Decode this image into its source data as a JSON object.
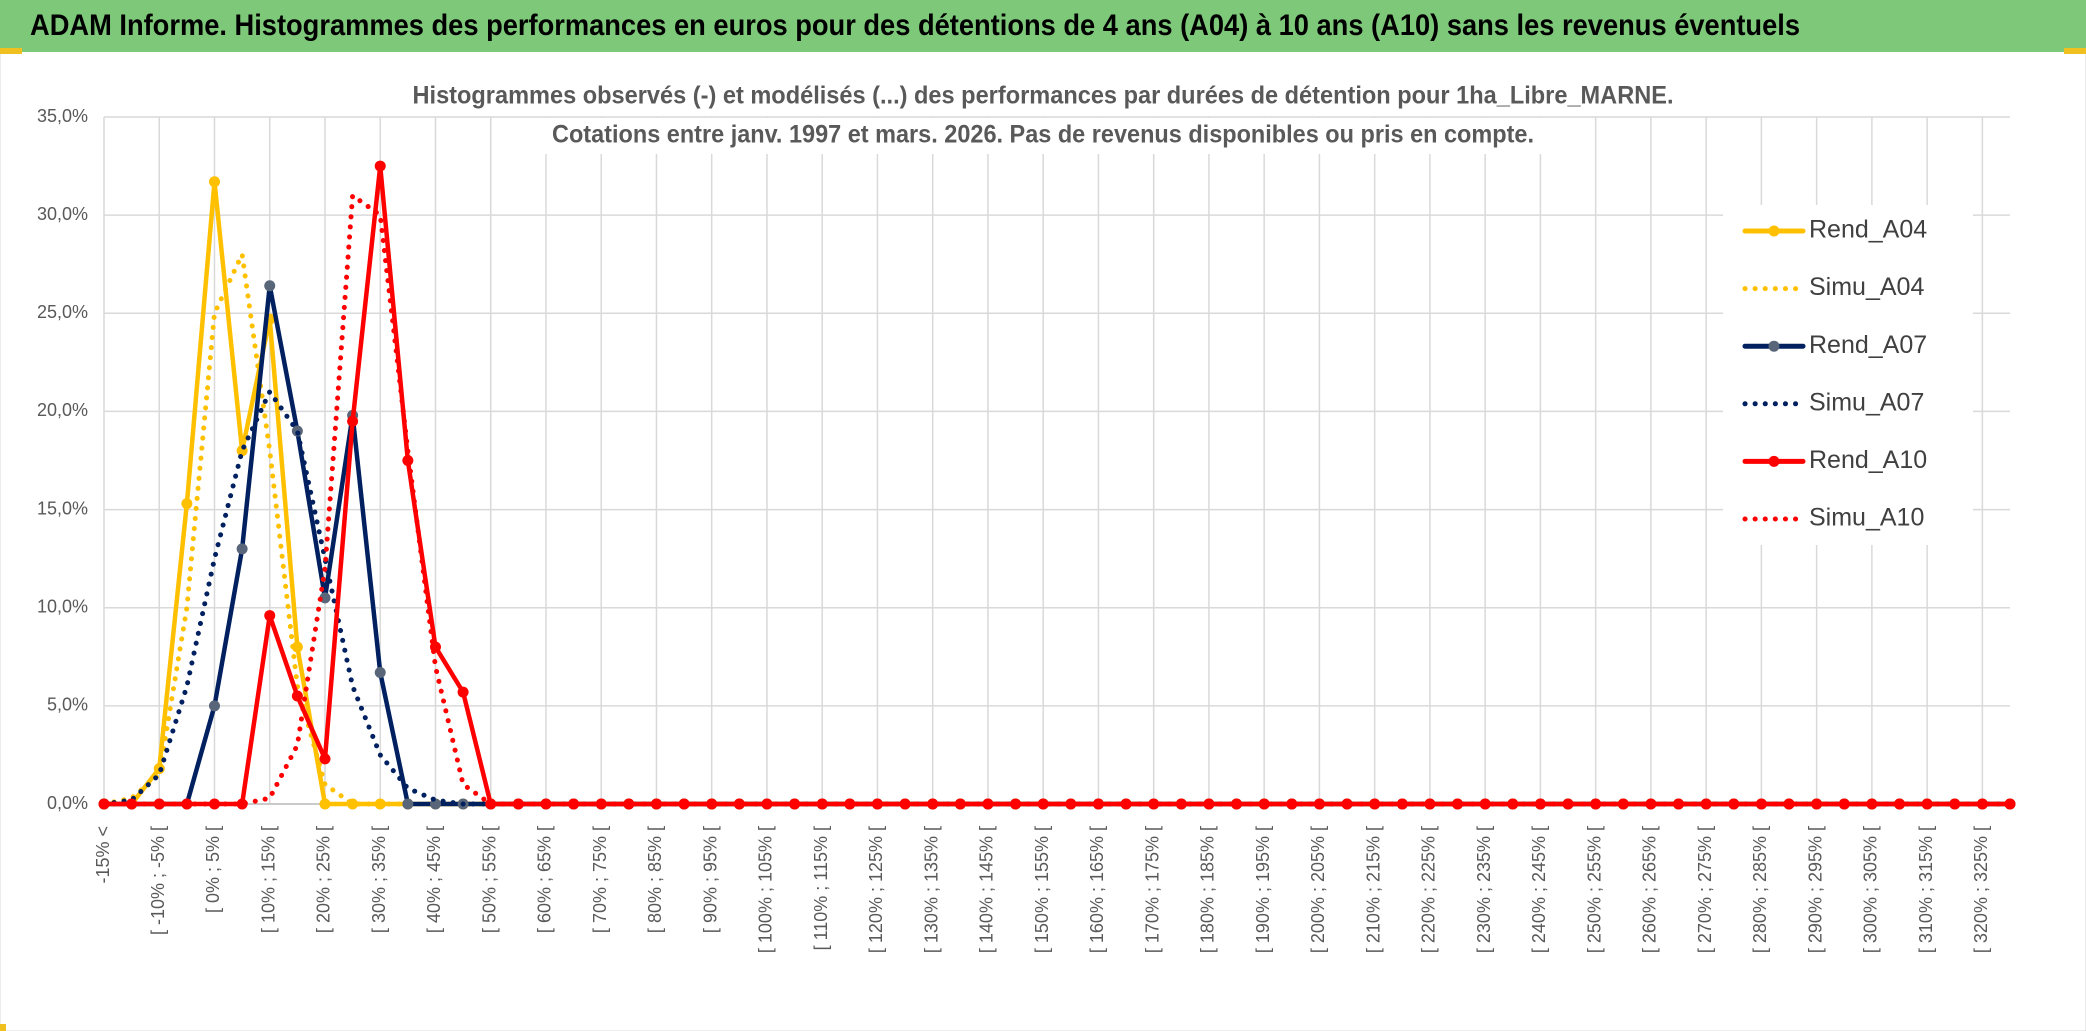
{
  "chart_data": {
    "type": "line",
    "title": "ADAM Informe. Histogrammes des performances en euros pour des détentions de 4 ans (A04) à 10 ans (A10) sans les revenus éventuels",
    "subtitle": [
      "Histogrammes observés (-) et modélisés (...) des performances par durées de détention pour 1ha_Libre_MARNE.",
      "Cotations entre janv. 1997 et mars. 2026. Pas de revenus disponibles ou pris en compte."
    ],
    "categories": [
      "-15% <",
      null,
      "[ -10% ; -5% [",
      null,
      "[ 0% ; 5% [",
      null,
      "[ 10% ; 15% [",
      null,
      "[ 20% ; 25% [",
      null,
      "[ 30% ; 35% [",
      null,
      "[ 40% ; 45% [",
      null,
      "[ 50% ; 55% [",
      null,
      "[ 60% ; 65% [",
      null,
      "[ 70% ; 75% [",
      null,
      "[ 80% ; 85% [",
      null,
      "[ 90% ; 95% [",
      null,
      "[ 100% ; 105% [",
      null,
      "[ 110% ; 115% [",
      null,
      "[ 120% ; 125% [",
      null,
      "[ 130% ; 135% [",
      null,
      "[ 140% ; 145% [",
      null,
      "[ 150% ; 155% [",
      null,
      "[ 160% ; 165% [",
      null,
      "[ 170% ; 175% [",
      null,
      "[ 180% ; 185% [",
      null,
      "[ 190% ; 195% [",
      null,
      "[ 200% ; 205% [",
      null,
      "[ 210% ; 215% [",
      null,
      "[ 220% ; 225% [",
      null,
      "[ 230% ; 235% [",
      null,
      "[ 240% ; 245% [",
      null,
      "[ 250% ; 255% [",
      null,
      "[ 260% ; 265% [",
      null,
      "[ 270% ; 275% [",
      null,
      "[ 280% ; 285% [",
      null,
      "[ 290% ; 295% [",
      null,
      "[ 300% ; 305% [",
      null,
      "[ 310% ; 315% [",
      null,
      "[ 320% ; 325% [",
      null
    ],
    "series": [
      {
        "name": "Rend_A04",
        "color": "#ffc000",
        "style": "solid",
        "marker": true,
        "marker_color": "#ffc000",
        "values": [
          0,
          0,
          1.8,
          15.3,
          31.7,
          18,
          24.7,
          8,
          0,
          0,
          0,
          0,
          0,
          0,
          0,
          0,
          0,
          0,
          0,
          0,
          0,
          0,
          0,
          0,
          0,
          0,
          0,
          0,
          0,
          0,
          0,
          0,
          0,
          0,
          0,
          0,
          0,
          0,
          0,
          0,
          0,
          0,
          0,
          0,
          0,
          0,
          0,
          0,
          0,
          0,
          0,
          0,
          0,
          0,
          0,
          0,
          0,
          0,
          0,
          0,
          0,
          0,
          0,
          0,
          0,
          0,
          0,
          0,
          0,
          0
        ]
      },
      {
        "name": "Simu_A04",
        "color": "#ffc000",
        "style": "dotted",
        "marker": false,
        "values": [
          0,
          0.3,
          1.5,
          10,
          25,
          28,
          18,
          6,
          1,
          0,
          0,
          0,
          0,
          0,
          0,
          0,
          0,
          0,
          0,
          0,
          0,
          0,
          0,
          0,
          0,
          0,
          0,
          0,
          0,
          0,
          0,
          0,
          0,
          0,
          0,
          0,
          0,
          0,
          0,
          0,
          0,
          0,
          0,
          0,
          0,
          0,
          0,
          0,
          0,
          0,
          0,
          0,
          0,
          0,
          0,
          0,
          0,
          0,
          0,
          0,
          0,
          0,
          0,
          0,
          0,
          0,
          0,
          0,
          0,
          0
        ]
      },
      {
        "name": "Rend_A07",
        "color": "#002060",
        "style": "solid",
        "marker": true,
        "marker_color": "#596579",
        "values": [
          0,
          0,
          0,
          0,
          5,
          13,
          26.4,
          19,
          10.5,
          19.8,
          6.7,
          0,
          0,
          0,
          0,
          0,
          0,
          0,
          0,
          0,
          0,
          0,
          0,
          0,
          0,
          0,
          0,
          0,
          0,
          0,
          0,
          0,
          0,
          0,
          0,
          0,
          0,
          0,
          0,
          0,
          0,
          0,
          0,
          0,
          0,
          0,
          0,
          0,
          0,
          0,
          0,
          0,
          0,
          0,
          0,
          0,
          0,
          0,
          0,
          0,
          0,
          0,
          0,
          0,
          0,
          0,
          0,
          0,
          0,
          0
        ]
      },
      {
        "name": "Simu_A07",
        "color": "#002060",
        "style": "dotted",
        "marker": false,
        "values": [
          0,
          0.2,
          1.5,
          6,
          12.5,
          18,
          21,
          19,
          12.5,
          6,
          2.5,
          0.8,
          0.2,
          0,
          0,
          0,
          0,
          0,
          0,
          0,
          0,
          0,
          0,
          0,
          0,
          0,
          0,
          0,
          0,
          0,
          0,
          0,
          0,
          0,
          0,
          0,
          0,
          0,
          0,
          0,
          0,
          0,
          0,
          0,
          0,
          0,
          0,
          0,
          0,
          0,
          0,
          0,
          0,
          0,
          0,
          0,
          0,
          0,
          0,
          0,
          0,
          0,
          0,
          0,
          0,
          0,
          0,
          0,
          0,
          0
        ]
      },
      {
        "name": "Rend_A10",
        "color": "#ff0000",
        "style": "solid",
        "marker": true,
        "marker_color": "#ff0000",
        "values": [
          0,
          0,
          0,
          0,
          0,
          0,
          9.6,
          5.5,
          2.3,
          19.5,
          32.5,
          17.5,
          8,
          5.7,
          0,
          0,
          0,
          0,
          0,
          0,
          0,
          0,
          0,
          0,
          0,
          0,
          0,
          0,
          0,
          0,
          0,
          0,
          0,
          0,
          0,
          0,
          0,
          0,
          0,
          0,
          0,
          0,
          0,
          0,
          0,
          0,
          0,
          0,
          0,
          0,
          0,
          0,
          0,
          0,
          0,
          0,
          0,
          0,
          0,
          0,
          0,
          0,
          0,
          0,
          0,
          0,
          0,
          0,
          0,
          0
        ]
      },
      {
        "name": "Simu_A10",
        "color": "#ff0000",
        "style": "dotted",
        "marker": false,
        "values": [
          0,
          0,
          0,
          0,
          0,
          0,
          0.3,
          3,
          12,
          31,
          30,
          18,
          7,
          1,
          0,
          0,
          0,
          0,
          0,
          0,
          0,
          0,
          0,
          0,
          0,
          0,
          0,
          0,
          0,
          0,
          0,
          0,
          0,
          0,
          0,
          0,
          0,
          0,
          0,
          0,
          0,
          0,
          0,
          0,
          0,
          0,
          0,
          0,
          0,
          0,
          0,
          0,
          0,
          0,
          0,
          0,
          0,
          0,
          0,
          0,
          0,
          0,
          0,
          0,
          0,
          0,
          0,
          0,
          0,
          0
        ]
      }
    ],
    "ylim": [
      0,
      35
    ],
    "yticks": [
      {
        "value": 0,
        "label": "0,0%"
      },
      {
        "value": 5,
        "label": "5,0%"
      },
      {
        "value": 10,
        "label": "10,0%"
      },
      {
        "value": 15,
        "label": "15,0%"
      },
      {
        "value": 20,
        "label": "20,0%"
      },
      {
        "value": 25,
        "label": "25,0%"
      },
      {
        "value": 30,
        "label": "30,0%"
      },
      {
        "value": 35,
        "label": "35,0%"
      }
    ],
    "grid": true,
    "legend": "right"
  }
}
